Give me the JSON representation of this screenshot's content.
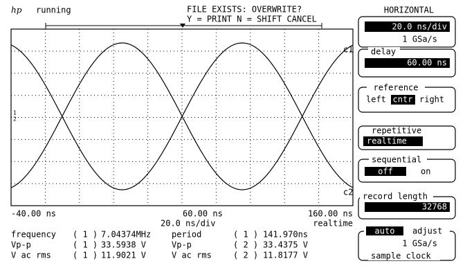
{
  "header": {
    "logo": "hp",
    "status": "running",
    "message": [
      "FILE EXISTS: OVERWRITE?",
      "Y = PRINT N = SHIFT CANCEL"
    ]
  },
  "display": {
    "channel_labels": [
      "c1",
      "c2"
    ],
    "ground_markers": [
      "1",
      "2"
    ]
  },
  "axis": {
    "left": "-40.00 ns",
    "center": "60.00 ns",
    "right": "160.00 ns",
    "scale": "20.0 ns/div",
    "mode": "realtime"
  },
  "measurements": {
    "rows": [
      [
        "frequency",
        "( 1 )",
        "7.04374MHz",
        "period",
        "( 1 )",
        "141.970ns"
      ],
      [
        "Vp-p",
        "( 1 )",
        "33.5938 V",
        "Vp-p",
        "( 2 )",
        "33.4375 V"
      ],
      [
        "V ac rms",
        "( 1 )",
        "11.9021 V",
        "V ac rms",
        "( 2 )",
        "11.8177 V"
      ]
    ]
  },
  "panel": {
    "title": "HORIZONTAL",
    "timebase": {
      "value": "20.0 ns/div",
      "rate": "1 GSa/s"
    },
    "delay": {
      "label": "delay",
      "value": "60.00 ns"
    },
    "reference": {
      "label": "reference",
      "options": [
        "left",
        "cntr",
        "right"
      ]
    },
    "repetitive": {
      "label": "repetitive",
      "value": "realtime"
    },
    "sequential": {
      "label": "sequential",
      "options": [
        "off",
        "on"
      ]
    },
    "record_length": {
      "label": "record length",
      "value": "32768"
    },
    "sample_clock": {
      "auto": "auto",
      "adjust": "adjust",
      "rate": "1 GSa/s",
      "label": "sample clock"
    }
  }
}
